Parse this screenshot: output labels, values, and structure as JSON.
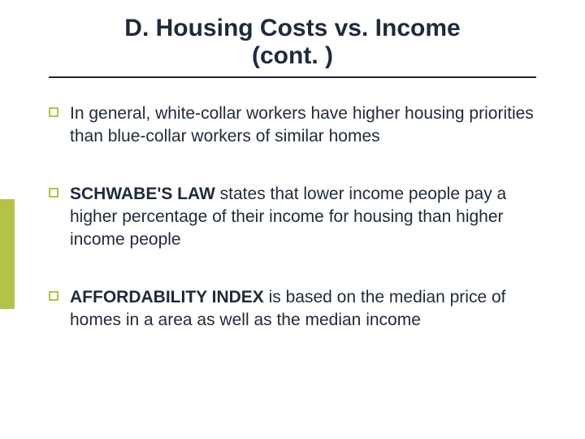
{
  "title": {
    "text": "D. Housing Costs vs. Income\n(cont. )",
    "fontsize": 30,
    "color": "#1f2a3a",
    "rule_color": "#1f2a3a"
  },
  "accent_bar": {
    "color": "#b4c247"
  },
  "bullets": {
    "marker_border_color": "#b4c247",
    "fontsize": 21,
    "gap": 42,
    "items": [
      {
        "lead": "",
        "rest": "In general, white-collar workers have higher housing priorities than blue-collar workers of similar homes"
      },
      {
        "lead": "SCHWABE'S LAW",
        "rest": " states that lower income people pay a higher percentage of their income for housing than higher income people"
      },
      {
        "lead": "AFFORDABILITY INDEX",
        "rest": " is based on the median price of homes in a area as well as the median income"
      }
    ]
  }
}
